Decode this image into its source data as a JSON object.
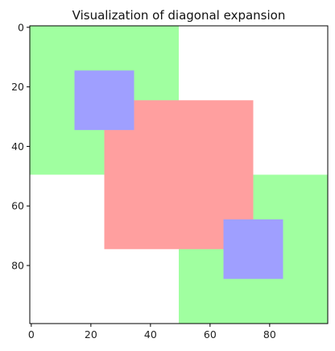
{
  "chart_data": {
    "type": "heatmap",
    "title": "Visualization of diagonal expansion",
    "xlabel": "",
    "ylabel": "",
    "xlim": [
      -0.5,
      99.5
    ],
    "ylim": [
      99.5,
      -0.5
    ],
    "y_inverted": true,
    "grid": false,
    "x_ticks": [
      0,
      20,
      40,
      60,
      80
    ],
    "y_ticks": [
      0,
      20,
      40,
      60,
      80
    ],
    "background_color": "#ffffff",
    "regions": [
      {
        "label": "green",
        "x0": 0,
        "x1": 50,
        "y0": 0,
        "y1": 50,
        "color": "#a0ffa0"
      },
      {
        "label": "green",
        "x0": 50,
        "x1": 100,
        "y0": 50,
        "y1": 100,
        "color": "#a0ffa0"
      },
      {
        "label": "red",
        "x0": 25,
        "x1": 75,
        "y0": 25,
        "y1": 75,
        "color": "#ff9f9f"
      },
      {
        "label": "blue",
        "x0": 15,
        "x1": 35,
        "y0": 15,
        "y1": 35,
        "color": "#9f9fff"
      },
      {
        "label": "blue",
        "x0": 65,
        "x1": 85,
        "y0": 65,
        "y1": 85,
        "color": "#9f9fff"
      }
    ]
  }
}
